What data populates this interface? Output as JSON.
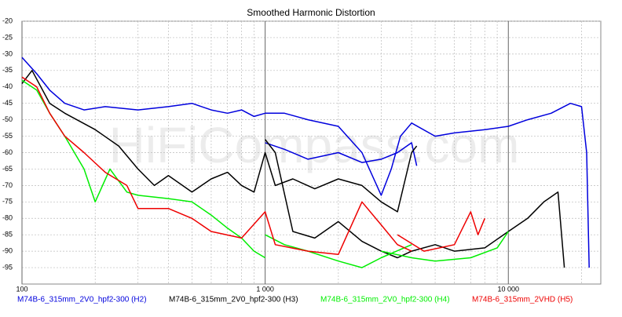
{
  "chart_data": {
    "type": "line",
    "title": "Smoothed Harmonic Distortion",
    "watermark": "HiFiCompass.com",
    "xscale": "log",
    "grid": true,
    "xlim": [
      100,
      24000
    ],
    "xticks": [
      100,
      {
        "value": 1000,
        "label": "1 000"
      },
      {
        "value": 10000,
        "label": "10 000"
      }
    ],
    "ylim": [
      -100,
      -20
    ],
    "yticks": [
      -20,
      -25,
      -30,
      -35,
      -40,
      -45,
      -50,
      -55,
      -60,
      -65,
      -70,
      -75,
      -80,
      -85,
      -90,
      -95
    ],
    "series": [
      {
        "name": "M74B-6_315mm_2V0_hpf2-300 (H2)",
        "color": "#0000dd",
        "x": [
          100,
          115,
          130,
          150,
          180,
          220,
          300,
          400,
          500,
          600,
          700,
          800,
          900,
          1000,
          1200,
          1500,
          2000,
          2500,
          3000,
          3300,
          3600,
          4000,
          5000,
          6000,
          8000,
          10000,
          12000,
          15000,
          18000,
          20000,
          21000,
          21500,
          null,
          1000,
          1200,
          1500,
          2000,
          2500,
          3000,
          3500,
          4000,
          4200
        ],
        "values": [
          -31,
          -36,
          -41,
          -45,
          -47,
          -46,
          -47,
          -46,
          -45,
          -47,
          -48,
          -47,
          -49,
          -48,
          -48,
          -50,
          -52,
          -60,
          -73,
          -65,
          -55,
          -51,
          -55,
          -54,
          -53,
          -52,
          -50,
          -48,
          -45,
          -46,
          -60,
          -95,
          null,
          -57,
          -59,
          -62,
          -60,
          -63,
          -62,
          -60,
          -57,
          -64
        ]
      },
      {
        "name": "M74B-6_315mm_2V0_hpf2-300 (H3)",
        "color": "#000000",
        "x": [
          100,
          110,
          130,
          150,
          200,
          250,
          300,
          350,
          400,
          500,
          600,
          700,
          800,
          900,
          1000,
          1100,
          1300,
          1600,
          2000,
          2500,
          3000,
          3500,
          4000,
          4200,
          null,
          1000,
          1100,
          1300,
          1600,
          2000,
          2500,
          3000,
          3500,
          4000,
          5000,
          6000,
          8000,
          10000,
          12000,
          14000,
          16000,
          17000
        ],
        "values": [
          -39,
          -35,
          -45,
          -48,
          -53,
          -58,
          -65,
          -70,
          -67,
          -72,
          -68,
          -66,
          -70,
          -72,
          -60,
          -70,
          -68,
          -71,
          -68,
          -70,
          -75,
          -78,
          -60,
          -58,
          null,
          -56,
          -60,
          -84,
          -86,
          -81,
          -87,
          -90,
          -92,
          -90,
          -88,
          -90,
          -89,
          -84,
          -80,
          -75,
          -72,
          -95
        ]
      },
      {
        "name": "M74B-6_315mm_2V0_hpf2-300 (H4)",
        "color": "#00ee00",
        "x": [
          100,
          115,
          130,
          150,
          180,
          200,
          230,
          270,
          300,
          400,
          500,
          600,
          700,
          800,
          900,
          1000,
          null,
          1000,
          1200,
          1500,
          2000,
          2500,
          3000,
          4000,
          null,
          3000,
          4000,
          5000,
          7000,
          9000,
          10000
        ],
        "values": [
          -38,
          -41,
          -48,
          -55,
          -65,
          -75,
          -65,
          -72,
          -73,
          -74,
          -75,
          -79,
          -83,
          -86,
          -90,
          -92,
          null,
          -85,
          -88,
          -90,
          -93,
          -95,
          -92,
          -88,
          null,
          -90,
          -92,
          -93,
          -92,
          -89,
          -84
        ]
      },
      {
        "name": "M74B-6_315mm_2VHD (H5)",
        "color": "#ee0000",
        "x": [
          100,
          115,
          130,
          150,
          180,
          220,
          270,
          300,
          400,
          500,
          600,
          800,
          1000,
          1100,
          1500,
          2000,
          2500,
          3000,
          3500,
          4000,
          null,
          3500,
          4500,
          6000,
          7000,
          7500,
          8000
        ],
        "values": [
          -37,
          -40,
          -48,
          -55,
          -60,
          -66,
          -70,
          -77,
          -77,
          -80,
          -84,
          -86,
          -78,
          -88,
          -90,
          -91,
          -75,
          -82,
          -88,
          -90,
          null,
          -85,
          -90,
          -88,
          -78,
          -85,
          -80
        ]
      }
    ]
  }
}
